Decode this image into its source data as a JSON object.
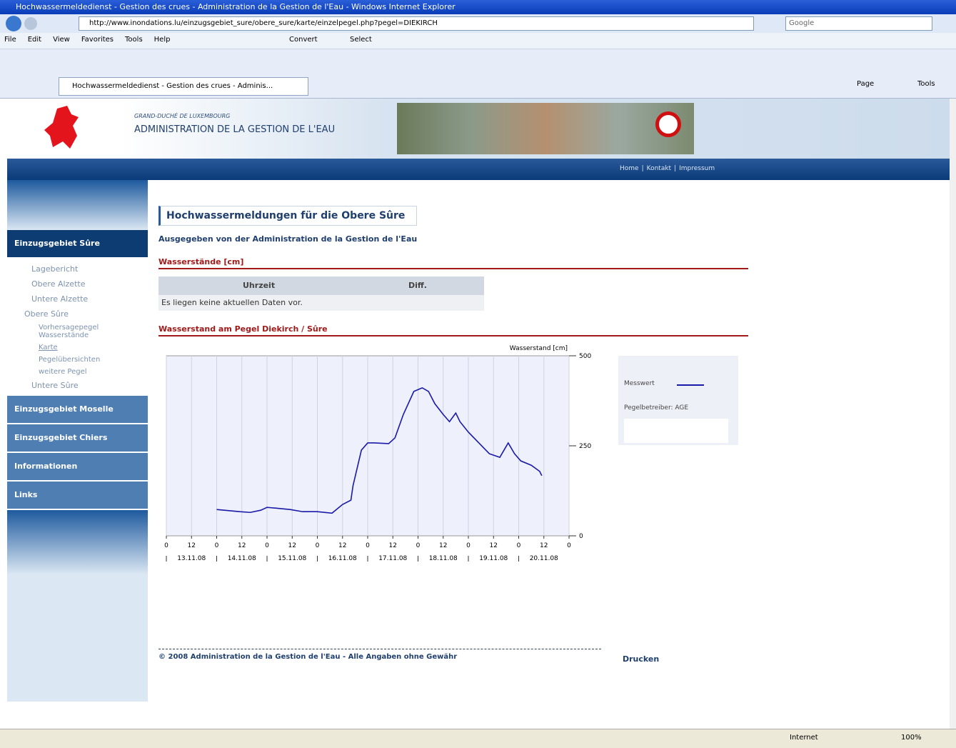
{
  "browser": {
    "title": "Hochwassermeldedienst - Gestion des crues - Administration de la Gestion de l'Eau - Windows Internet Explorer",
    "url": "http://www.inondations.lu/einzugsgebiet_sure/obere_sure/karte/einzelpegel.php?pegel=DIEKIRCH",
    "search": "Google",
    "menu": [
      "File",
      "Edit",
      "View",
      "Favorites",
      "Tools",
      "Help"
    ],
    "convert": "Convert",
    "select": "Select",
    "tab": "Hochwassermeldedienst - Gestion des crues - Adminis...",
    "toolbar": [
      "Page",
      "Tools"
    ],
    "status": "Internet",
    "zoom": "100%"
  },
  "header": {
    "country": "GRAND-DUCHÉ DE LUXEMBOURG",
    "agency": "ADMINISTRATION DE LA GESTION DE L'EAU",
    "links": [
      "Home",
      "Kontakt",
      "Impressum"
    ]
  },
  "nav": {
    "section": "Einzugsgebiet Sûre",
    "items": [
      "Lagebericht",
      "Obere Alzette",
      "Untere Alzette",
      "Obere Sûre"
    ],
    "subitems": [
      "Vorhersagepegel Wasserstände",
      "Karte",
      "Pegelübersichten",
      "weitere Pegel"
    ],
    "last_item": "Untere Sûre",
    "sections": [
      "Einzugsgebiet Moselle",
      "Einzugsgebiet Chiers",
      "Informationen",
      "Links"
    ]
  },
  "content": {
    "title": "Hochwassermeldungen für die Obere Sûre",
    "subtitle": "Ausgegeben von der Administration de la Gestion de l'Eau",
    "section1": "Wasserstände [cm]",
    "table_headers": [
      "Uhrzeit",
      "Diff."
    ],
    "table_message": "Es liegen keine aktuellen Daten vor.",
    "section2": "Wasserstand am Pegel Diekirch / Sûre",
    "footer": "© 2008 Administration de la Gestion de l'Eau - Alle Angaben ohne Gewähr",
    "print": "Drucken"
  },
  "chart_data": {
    "type": "line",
    "y_label": "Wasserstand [cm]",
    "operator": "Pegelbetreiber: AGE",
    "grid": true,
    "xlim": [
      0,
      192
    ],
    "xticks": [
      0,
      12,
      {
        "value": 24,
        "label": "0"
      },
      {
        "value": 36,
        "label": "12"
      },
      {
        "value": 48,
        "label": "0"
      },
      {
        "value": 60,
        "label": "12"
      },
      {
        "value": 72,
        "label": "0"
      },
      {
        "value": 84,
        "label": "12"
      },
      {
        "value": 96,
        "label": "0"
      },
      {
        "value": 108,
        "label": "12"
      },
      {
        "value": 120,
        "label": "0"
      },
      {
        "value": 132,
        "label": "12"
      },
      {
        "value": 144,
        "label": "0"
      },
      {
        "value": 156,
        "label": "12"
      },
      {
        "value": 168,
        "label": "0"
      },
      {
        "value": 180,
        "label": "12"
      },
      {
        "value": 192,
        "label": "0"
      }
    ],
    "day_labels": [
      "13.11.08",
      "14.11.08",
      "15.11.08",
      "16.11.08",
      "17.11.08",
      "18.11.08",
      "19.11.08",
      "20.11.08"
    ],
    "ylim": [
      0,
      500
    ],
    "yticks": [
      0,
      250,
      500
    ],
    "series": [
      {
        "name": "Messwert",
        "color": "#1a1aa8",
        "x": [
          24,
          35,
          40,
          45,
          48,
          52,
          59,
          65,
          72,
          79,
          84,
          88,
          89,
          93,
          96,
          99,
          106,
          109,
          113,
          118,
          122,
          125,
          128,
          132,
          135,
          138,
          140,
          144,
          149,
          154,
          159,
          161,
          163,
          166,
          169,
          174,
          178,
          179
        ],
        "values": [
          73,
          67,
          65,
          71,
          79,
          77,
          73,
          67,
          67,
          63,
          87,
          99,
          139,
          238,
          258,
          258,
          256,
          272,
          337,
          401,
          411,
          401,
          367,
          337,
          317,
          341,
          317,
          288,
          258,
          228,
          218,
          238,
          258,
          228,
          208,
          196,
          179,
          167
        ]
      }
    ]
  }
}
